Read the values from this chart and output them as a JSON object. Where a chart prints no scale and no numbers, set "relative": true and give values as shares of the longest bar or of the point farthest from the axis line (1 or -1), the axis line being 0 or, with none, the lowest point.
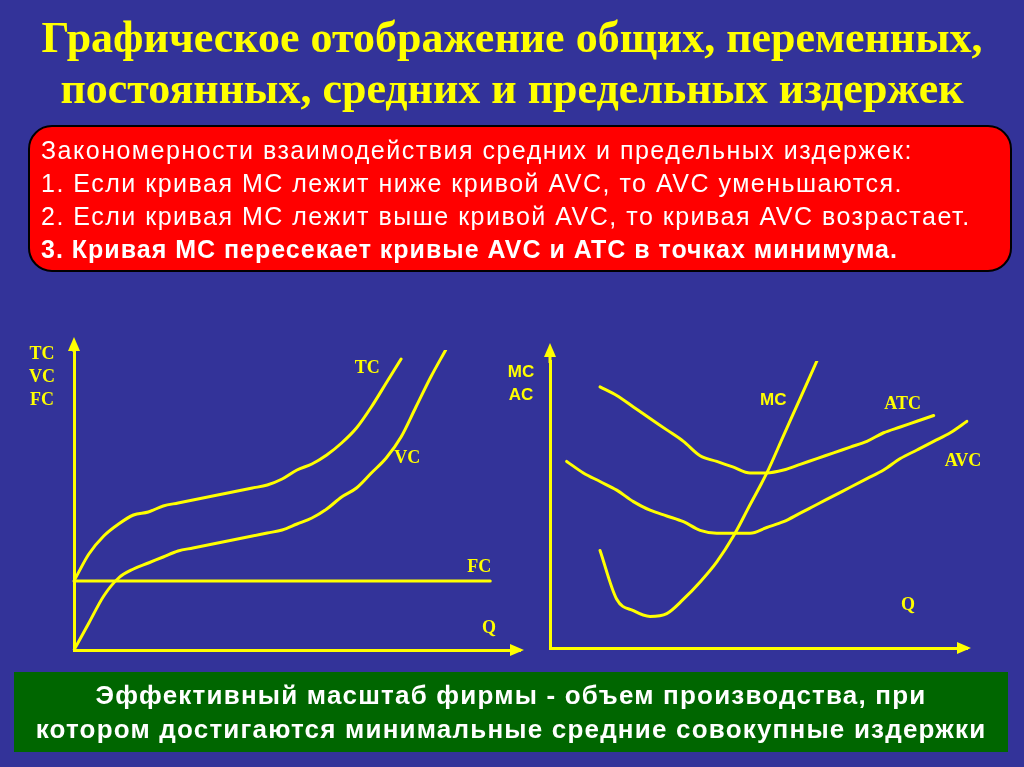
{
  "chart_data": [
    {
      "type": "line",
      "title": "Графическое отображение общих, переменных,\nпостоянных, средних и предельных издержек",
      "annotations": [
        "Закономерности взаимодействия средних и предельных издержек:",
        "1. Если кривая MC лежит ниже кривой AVC, то AVC уменьшаются.",
        "2. Если кривая MC лежит выше кривой AVC, то кривая AVC возрастает.",
        "3. Кривая MC пересекает кривые AVC и ATC в точках минимума."
      ],
      "xlabel": "Q",
      "ylabel": "TC\nVC\nFC",
      "relative": true,
      "tick_labels": false,
      "marker": "none",
      "categories": [
        null,
        null,
        null,
        null,
        null,
        null,
        null,
        null,
        null,
        null,
        null,
        null,
        null,
        null,
        null,
        null,
        null,
        null,
        null,
        null,
        null,
        null,
        null,
        null,
        null,
        null,
        null,
        null,
        null,
        null,
        null
      ],
      "series": [
        {
          "name": "TC",
          "color": "#ffff00",
          "values": [
            0.23,
            0.32,
            0.38,
            0.42,
            0.45,
            0.46,
            0.48,
            0.49,
            0.5,
            0.51,
            0.52,
            0.53,
            0.54,
            0.55,
            0.57,
            0.6,
            0.62,
            0.65,
            0.69,
            0.74,
            0.81,
            0.89,
            0.97,
            null,
            null,
            null,
            null,
            null,
            null,
            null,
            null
          ]
        },
        {
          "name": "VC",
          "color": "#ffff00",
          "values": [
            0,
            0.09,
            0.18,
            0.24,
            0.27,
            0.29,
            0.31,
            0.33,
            0.34,
            0.35,
            0.36,
            0.37,
            0.38,
            0.39,
            0.4,
            0.42,
            0.44,
            0.47,
            0.51,
            0.54,
            0.59,
            0.64,
            0.71,
            0.81,
            0.91,
            1,
            null,
            null,
            null,
            null,
            null
          ]
        },
        {
          "name": "FC",
          "color": "#ffff00",
          "values": [
            0.23,
            0.23,
            0.23,
            0.23,
            0.23,
            0.23,
            0.23,
            0.23,
            0.23,
            0.23,
            0.23,
            0.23,
            0.23,
            0.23,
            0.23,
            0.23,
            0.23,
            0.23,
            0.23,
            0.23,
            0.23,
            0.23,
            0.23,
            0.23,
            0.23,
            0.23,
            0.23,
            0.23,
            0.23,
            null,
            null
          ]
        }
      ]
    },
    {
      "type": "line",
      "annotations": [
        "Эффективный масштаб фирмы - объем производства, при\nкотором достигаются минимальные средние совокупные издержки"
      ],
      "xlabel": "Q",
      "ylabel": "MC\nAC",
      "relative": true,
      "tick_labels": false,
      "marker": "none",
      "categories": [
        null,
        null,
        null,
        null,
        null,
        null,
        null,
        null,
        null,
        null,
        null,
        null,
        null,
        null,
        null,
        null,
        null,
        null,
        null,
        null,
        null,
        null,
        null,
        null,
        null,
        null
      ],
      "series": [
        {
          "name": "MC",
          "color": "#ffff00",
          "values": [
            null,
            null,
            null,
            0.34,
            0.17,
            0.13,
            0.11,
            0.12,
            0.17,
            0.23,
            0.3,
            0.39,
            0.5,
            0.61,
            0.74,
            0.87,
            1,
            null,
            null,
            null,
            null,
            null,
            null,
            null,
            null,
            null
          ]
        },
        {
          "name": "ATC",
          "color": "#ffff00",
          "values": [
            null,
            null,
            null,
            0.91,
            0.88,
            0.84,
            0.8,
            0.76,
            0.72,
            0.67,
            0.65,
            0.63,
            0.61,
            0.61,
            0.62,
            0.64,
            0.66,
            0.68,
            0.7,
            0.72,
            0.75,
            0.77,
            0.79,
            0.81,
            null,
            null
          ]
        },
        {
          "name": "AVC",
          "color": "#ffff00",
          "values": [
            null,
            0.65,
            0.61,
            0.58,
            0.55,
            0.51,
            0.48,
            0.46,
            0.44,
            0.41,
            0.4,
            0.4,
            0.4,
            0.42,
            0.44,
            0.47,
            0.5,
            0.53,
            0.56,
            0.59,
            0.62,
            0.66,
            0.69,
            0.72,
            0.75,
            0.79
          ]
        }
      ]
    }
  ]
}
